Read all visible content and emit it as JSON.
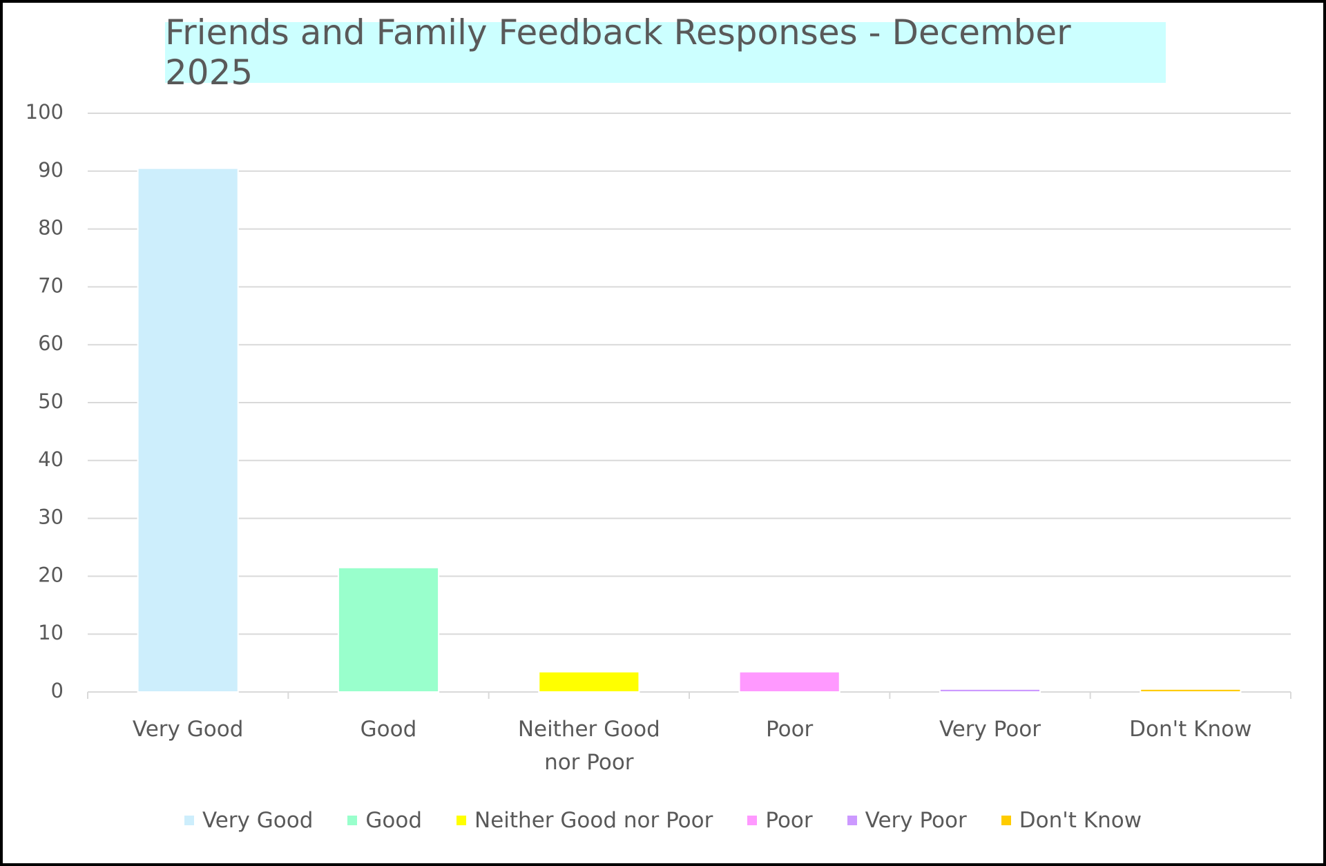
{
  "chart_data": {
    "type": "bar",
    "title": "Friends and Family Feedback Responses - December 2025",
    "categories": [
      "Very Good",
      "Good",
      "Neither Good nor Poor",
      "Poor",
      "Very Poor",
      "Don't Know"
    ],
    "values": [
      90.5,
      21.5,
      3.5,
      3.5,
      0.5,
      0.5
    ],
    "colors": [
      "#cdeefc",
      "#99ffcc",
      "#ffff00",
      "#ff99ff",
      "#cc99ff",
      "#ffcc00"
    ],
    "ylim": [
      0,
      100
    ],
    "yticks": [
      0,
      10,
      20,
      30,
      40,
      50,
      60,
      70,
      80,
      90,
      100
    ],
    "grid": true,
    "legend": "bottom"
  }
}
